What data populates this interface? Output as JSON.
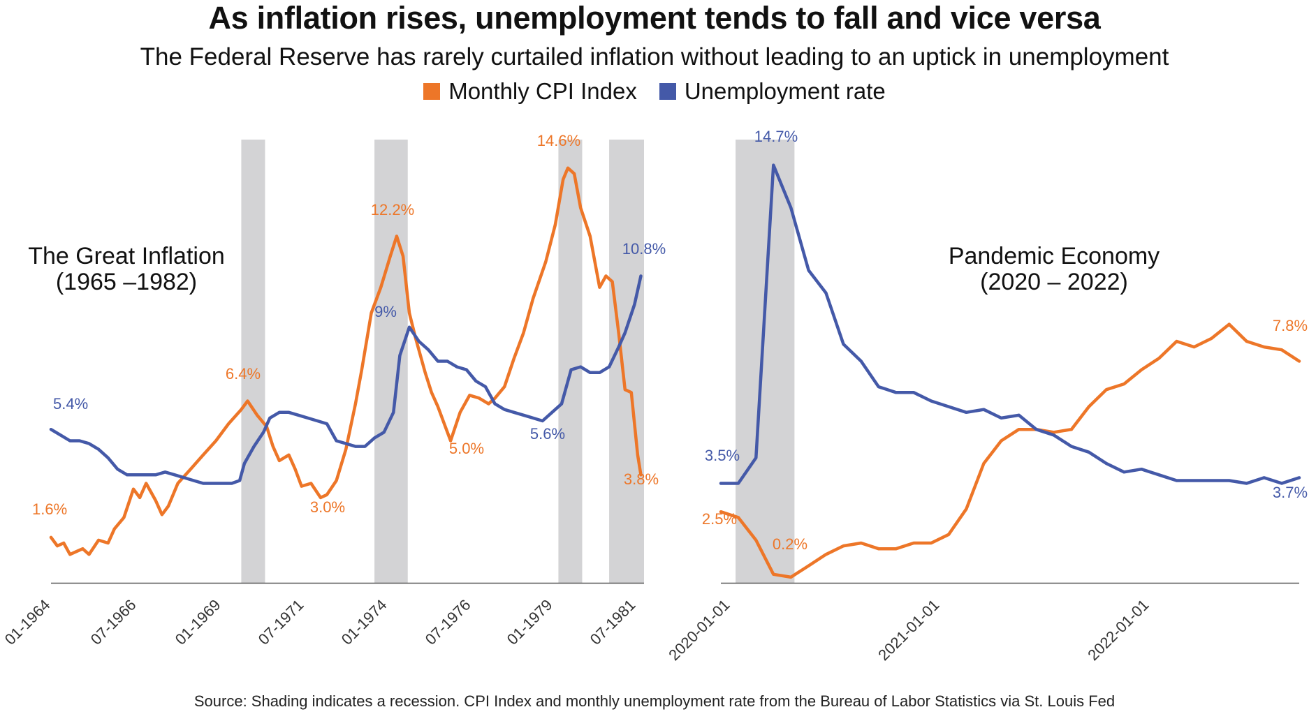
{
  "header": {
    "title": "As inflation rises, unemployment tends to fall and vice versa",
    "subtitle": "The Federal Reserve has rarely curtailed inflation without leading to an uptick in unemployment"
  },
  "colors": {
    "cpi": "#ED7628",
    "unemployment": "#4459A8",
    "recession": "#D3D3D5",
    "axis": "#555555"
  },
  "legend": {
    "cpi_label": "Monthly CPI Index",
    "unemployment_label": "Unemployment rate"
  },
  "source": "Source: Shading indicates a recession. CPI Index and monthly unemployment rate from the Bureau of Labor Statistics via St. Louis Fed",
  "chart_data": [
    {
      "type": "line",
      "title": "The Great Inflation",
      "subtitle": "(1965 –1982)",
      "x_range": [
        1964.0,
        1982.7
      ],
      "y_range": [
        0,
        15.6
      ],
      "x_ticks": [
        {
          "label": "01-1964",
          "x": 1964.0
        },
        {
          "label": "07-1966",
          "x": 1966.5
        },
        {
          "label": "01-1969",
          "x": 1969.0
        },
        {
          "label": "07-1971",
          "x": 1971.5
        },
        {
          "label": "01-1974",
          "x": 1974.0
        },
        {
          "label": "07-1976",
          "x": 1976.5
        },
        {
          "label": "01-1979",
          "x": 1979.0
        },
        {
          "label": "07-1981",
          "x": 1981.5
        }
      ],
      "recessions": [
        [
          1970.0,
          1970.75
        ],
        [
          1974.2,
          1975.25
        ],
        [
          1980.0,
          1980.75
        ],
        [
          1981.6,
          1982.7
        ]
      ],
      "series": [
        {
          "name": "Monthly CPI Index",
          "key": "cpi",
          "points": [
            [
              1964.0,
              1.6
            ],
            [
              1964.2,
              1.3
            ],
            [
              1964.4,
              1.4
            ],
            [
              1964.6,
              1.0
            ],
            [
              1964.8,
              1.1
            ],
            [
              1965.0,
              1.2
            ],
            [
              1965.2,
              1.0
            ],
            [
              1965.5,
              1.5
            ],
            [
              1965.8,
              1.4
            ],
            [
              1966.0,
              1.9
            ],
            [
              1966.3,
              2.3
            ],
            [
              1966.6,
              3.3
            ],
            [
              1966.8,
              3.0
            ],
            [
              1967.0,
              3.5
            ],
            [
              1967.3,
              2.9
            ],
            [
              1967.5,
              2.4
            ],
            [
              1967.7,
              2.7
            ],
            [
              1968.0,
              3.5
            ],
            [
              1968.4,
              4.0
            ],
            [
              1968.8,
              4.5
            ],
            [
              1969.2,
              5.0
            ],
            [
              1969.6,
              5.6
            ],
            [
              1970.0,
              6.1
            ],
            [
              1970.2,
              6.4
            ],
            [
              1970.5,
              5.9
            ],
            [
              1970.8,
              5.5
            ],
            [
              1971.0,
              4.8
            ],
            [
              1971.2,
              4.3
            ],
            [
              1971.5,
              4.5
            ],
            [
              1971.7,
              4.0
            ],
            [
              1971.9,
              3.4
            ],
            [
              1972.2,
              3.5
            ],
            [
              1972.5,
              3.0
            ],
            [
              1972.7,
              3.1
            ],
            [
              1973.0,
              3.6
            ],
            [
              1973.3,
              4.7
            ],
            [
              1973.6,
              6.3
            ],
            [
              1973.8,
              7.5
            ],
            [
              1974.1,
              9.5
            ],
            [
              1974.4,
              10.4
            ],
            [
              1974.7,
              11.5
            ],
            [
              1974.9,
              12.2
            ],
            [
              1975.1,
              11.5
            ],
            [
              1975.3,
              9.5
            ],
            [
              1975.5,
              8.6
            ],
            [
              1975.8,
              7.4
            ],
            [
              1976.0,
              6.7
            ],
            [
              1976.2,
              6.2
            ],
            [
              1976.4,
              5.6
            ],
            [
              1976.6,
              5.0
            ],
            [
              1976.9,
              6.0
            ],
            [
              1977.2,
              6.6
            ],
            [
              1977.5,
              6.5
            ],
            [
              1977.8,
              6.3
            ],
            [
              1978.0,
              6.5
            ],
            [
              1978.3,
              6.9
            ],
            [
              1978.6,
              7.9
            ],
            [
              1978.9,
              8.8
            ],
            [
              1979.2,
              10.0
            ],
            [
              1979.6,
              11.3
            ],
            [
              1979.9,
              12.6
            ],
            [
              1980.15,
              14.2
            ],
            [
              1980.3,
              14.6
            ],
            [
              1980.5,
              14.4
            ],
            [
              1980.7,
              13.2
            ],
            [
              1981.0,
              12.2
            ],
            [
              1981.3,
              10.4
            ],
            [
              1981.5,
              10.8
            ],
            [
              1981.7,
              10.6
            ],
            [
              1981.9,
              8.8
            ],
            [
              1982.1,
              6.8
            ],
            [
              1982.3,
              6.7
            ],
            [
              1982.5,
              4.5
            ],
            [
              1982.6,
              3.8
            ]
          ]
        },
        {
          "name": "Unemployment rate",
          "key": "unemployment",
          "points": [
            [
              1964.0,
              5.4
            ],
            [
              1964.3,
              5.2
            ],
            [
              1964.6,
              5.0
            ],
            [
              1964.9,
              5.0
            ],
            [
              1965.2,
              4.9
            ],
            [
              1965.5,
              4.7
            ],
            [
              1965.8,
              4.4
            ],
            [
              1966.1,
              4.0
            ],
            [
              1966.4,
              3.8
            ],
            [
              1966.7,
              3.8
            ],
            [
              1967.0,
              3.8
            ],
            [
              1967.3,
              3.8
            ],
            [
              1967.6,
              3.9
            ],
            [
              1967.9,
              3.8
            ],
            [
              1968.2,
              3.7
            ],
            [
              1968.5,
              3.6
            ],
            [
              1968.8,
              3.5
            ],
            [
              1969.1,
              3.5
            ],
            [
              1969.4,
              3.5
            ],
            [
              1969.7,
              3.5
            ],
            [
              1969.95,
              3.6
            ],
            [
              1970.1,
              4.2
            ],
            [
              1970.4,
              4.8
            ],
            [
              1970.7,
              5.3
            ],
            [
              1970.9,
              5.8
            ],
            [
              1971.2,
              6.0
            ],
            [
              1971.5,
              6.0
            ],
            [
              1971.8,
              5.9
            ],
            [
              1972.1,
              5.8
            ],
            [
              1972.4,
              5.7
            ],
            [
              1972.7,
              5.6
            ],
            [
              1973.0,
              5.0
            ],
            [
              1973.3,
              4.9
            ],
            [
              1973.6,
              4.8
            ],
            [
              1973.9,
              4.8
            ],
            [
              1974.2,
              5.1
            ],
            [
              1974.5,
              5.3
            ],
            [
              1974.8,
              6.0
            ],
            [
              1975.0,
              8.0
            ],
            [
              1975.3,
              9.0
            ],
            [
              1975.6,
              8.5
            ],
            [
              1975.9,
              8.2
            ],
            [
              1976.2,
              7.8
            ],
            [
              1976.5,
              7.8
            ],
            [
              1976.8,
              7.6
            ],
            [
              1977.1,
              7.5
            ],
            [
              1977.4,
              7.1
            ],
            [
              1977.7,
              6.9
            ],
            [
              1978.0,
              6.3
            ],
            [
              1978.3,
              6.1
            ],
            [
              1978.6,
              6.0
            ],
            [
              1978.9,
              5.9
            ],
            [
              1979.2,
              5.8
            ],
            [
              1979.5,
              5.7
            ],
            [
              1979.8,
              6.0
            ],
            [
              1980.1,
              6.3
            ],
            [
              1980.4,
              7.5
            ],
            [
              1980.7,
              7.6
            ],
            [
              1981.0,
              7.4
            ],
            [
              1981.3,
              7.4
            ],
            [
              1981.6,
              7.6
            ],
            [
              1981.9,
              8.3
            ],
            [
              1982.1,
              8.8
            ],
            [
              1982.4,
              9.8
            ],
            [
              1982.6,
              10.8
            ]
          ]
        }
      ],
      "annotations": [
        {
          "text": "5.4%",
          "series": "unemployment"
        },
        {
          "text": "1.6%",
          "series": "cpi"
        },
        {
          "text": "6.4%",
          "series": "cpi"
        },
        {
          "text": "3.0%",
          "series": "cpi"
        },
        {
          "text": "12.2%",
          "series": "cpi"
        },
        {
          "text": "9%",
          "series": "unemployment"
        },
        {
          "text": "5.0%",
          "series": "cpi"
        },
        {
          "text": "5.6%",
          "series": "unemployment"
        },
        {
          "text": "14.6%",
          "series": "cpi"
        },
        {
          "text": "10.8%",
          "series": "unemployment"
        },
        {
          "text": "3.8%",
          "series": "cpi"
        }
      ]
    },
    {
      "type": "line",
      "title": "Pandemic Economy",
      "subtitle": "(2020 – 2022)",
      "x_range": [
        2020.0,
        2022.75
      ],
      "y_range": [
        0,
        15.6
      ],
      "x_ticks": [
        {
          "label": "2020-01-01",
          "x": 2020.0
        },
        {
          "label": "2021-01-01",
          "x": 2021.0
        },
        {
          "label": "2022-01-01",
          "x": 2022.0
        }
      ],
      "recessions": [
        [
          2020.07,
          2020.35
        ]
      ],
      "series": [
        {
          "name": "Monthly CPI Index",
          "key": "cpi",
          "points": [
            [
              2020.0,
              2.5
            ],
            [
              2020.083,
              2.3
            ],
            [
              2020.167,
              1.5
            ],
            [
              2020.25,
              0.3
            ],
            [
              2020.333,
              0.2
            ],
            [
              2020.417,
              0.6
            ],
            [
              2020.5,
              1.0
            ],
            [
              2020.583,
              1.3
            ],
            [
              2020.667,
              1.4
            ],
            [
              2020.75,
              1.2
            ],
            [
              2020.833,
              1.2
            ],
            [
              2020.917,
              1.4
            ],
            [
              2021.0,
              1.4
            ],
            [
              2021.083,
              1.7
            ],
            [
              2021.167,
              2.6
            ],
            [
              2021.25,
              4.2
            ],
            [
              2021.333,
              5.0
            ],
            [
              2021.417,
              5.4
            ],
            [
              2021.5,
              5.4
            ],
            [
              2021.583,
              5.3
            ],
            [
              2021.667,
              5.4
            ],
            [
              2021.75,
              6.2
            ],
            [
              2021.833,
              6.8
            ],
            [
              2021.917,
              7.0
            ],
            [
              2022.0,
              7.5
            ],
            [
              2022.083,
              7.9
            ],
            [
              2022.167,
              8.5
            ],
            [
              2022.25,
              8.3
            ],
            [
              2022.333,
              8.6
            ],
            [
              2022.417,
              9.1
            ],
            [
              2022.5,
              8.5
            ],
            [
              2022.583,
              8.3
            ],
            [
              2022.667,
              8.2
            ],
            [
              2022.75,
              7.8
            ]
          ]
        },
        {
          "name": "Unemployment rate",
          "key": "unemployment",
          "points": [
            [
              2020.0,
              3.5
            ],
            [
              2020.083,
              3.5
            ],
            [
              2020.167,
              4.4
            ],
            [
              2020.25,
              14.7
            ],
            [
              2020.333,
              13.2
            ],
            [
              2020.417,
              11.0
            ],
            [
              2020.5,
              10.2
            ],
            [
              2020.583,
              8.4
            ],
            [
              2020.667,
              7.8
            ],
            [
              2020.75,
              6.9
            ],
            [
              2020.833,
              6.7
            ],
            [
              2020.917,
              6.7
            ],
            [
              2021.0,
              6.4
            ],
            [
              2021.083,
              6.2
            ],
            [
              2021.167,
              6.0
            ],
            [
              2021.25,
              6.1
            ],
            [
              2021.333,
              5.8
            ],
            [
              2021.417,
              5.9
            ],
            [
              2021.5,
              5.4
            ],
            [
              2021.583,
              5.2
            ],
            [
              2021.667,
              4.8
            ],
            [
              2021.75,
              4.6
            ],
            [
              2021.833,
              4.2
            ],
            [
              2021.917,
              3.9
            ],
            [
              2022.0,
              4.0
            ],
            [
              2022.083,
              3.8
            ],
            [
              2022.167,
              3.6
            ],
            [
              2022.25,
              3.6
            ],
            [
              2022.333,
              3.6
            ],
            [
              2022.417,
              3.6
            ],
            [
              2022.5,
              3.5
            ],
            [
              2022.583,
              3.7
            ],
            [
              2022.667,
              3.5
            ],
            [
              2022.75,
              3.7
            ]
          ]
        }
      ],
      "annotations": [
        {
          "text": "14.7%",
          "series": "unemployment"
        },
        {
          "text": "3.5%",
          "series": "unemployment"
        },
        {
          "text": "2.5%",
          "series": "cpi"
        },
        {
          "text": "0.2%",
          "series": "cpi"
        },
        {
          "text": "7.8%",
          "series": "cpi"
        },
        {
          "text": "3.7%",
          "series": "unemployment"
        }
      ]
    }
  ]
}
